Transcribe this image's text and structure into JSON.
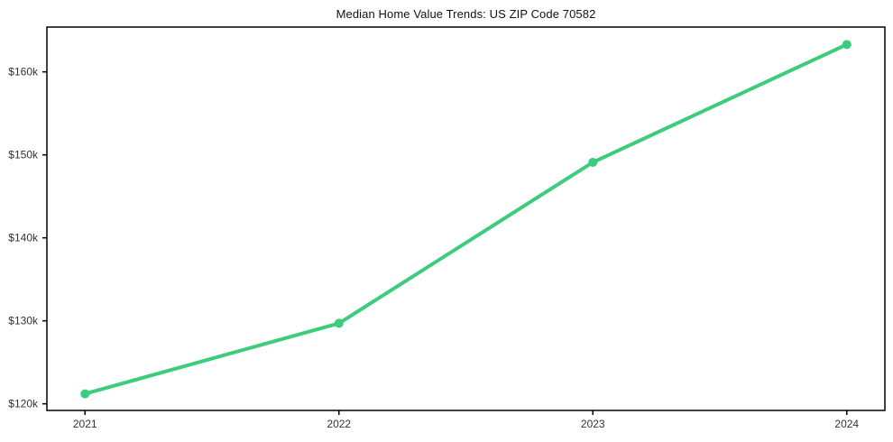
{
  "page": {
    "title": "Median Home Value Trends: US ZIP Code 70582"
  },
  "chart_data": {
    "type": "line",
    "title": "Median Home Value Trends: US ZIP Code 70582",
    "x": [
      2021,
      2022,
      2023,
      2024
    ],
    "categories": [
      "2021",
      "2022",
      "2023",
      "2024"
    ],
    "series": [
      {
        "name": "Median Home Value",
        "values": [
          121200,
          129700,
          149100,
          163300
        ]
      }
    ],
    "xlabel": "",
    "ylabel": "",
    "xlim": [
      2020.85,
      2024.15
    ],
    "ylim": [
      119200,
      165400
    ],
    "y_ticks": [
      120000,
      130000,
      140000,
      150000,
      160000
    ],
    "y_tick_labels": [
      "$120k",
      "$130k",
      "$140k",
      "$150k",
      "$160k"
    ],
    "x_tick_labels": [
      "2021",
      "2022",
      "2023",
      "2024"
    ],
    "grid": false,
    "legend": "none",
    "colors": {
      "line": "#3dcc7c",
      "marker": "#3dcc7c",
      "axis": "#000000",
      "tick_label": "#333333",
      "title": "#111111",
      "background": "#ffffff"
    },
    "line_width": 4,
    "marker_radius": 5
  }
}
